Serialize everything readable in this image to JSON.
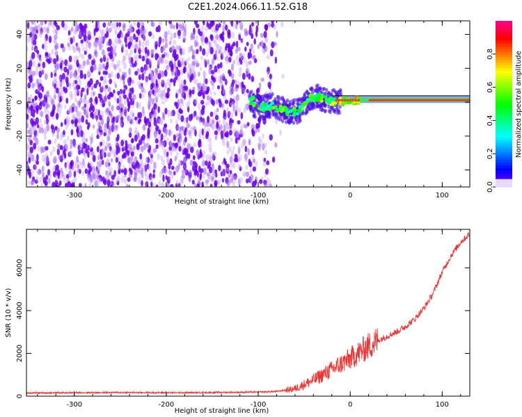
{
  "title": "C2E1.2024.066.11.52.G18",
  "chart_data": [
    {
      "type": "heatmap",
      "xlabel": "Height of straight line (km)",
      "ylabel": "Frequency (Hz)",
      "xlim": [
        -352,
        130
      ],
      "ylim": [
        -50,
        48
      ],
      "xticks": [
        "-300",
        "-200",
        "-100",
        "0",
        "100"
      ],
      "yticks": [
        "-40",
        "-20",
        "0",
        "20",
        "40"
      ],
      "colorbar": {
        "label": "Normalized spectral amplitude",
        "range": [
          0,
          1
        ],
        "ticks": [
          "0.0",
          "0.2",
          "0.4",
          "0.6",
          "0.8"
        ]
      },
      "noise_region": {
        "x_from": -352,
        "x_to": -75
      },
      "signal_track": [
        {
          "x": -105,
          "y": -2
        },
        {
          "x": -95,
          "y": -3
        },
        {
          "x": -85,
          "y": -2
        },
        {
          "x": -75,
          "y": -4
        },
        {
          "x": -65,
          "y": -6
        },
        {
          "x": -55,
          "y": -5
        },
        {
          "x": -45,
          "y": 2
        },
        {
          "x": -35,
          "y": 3
        },
        {
          "x": -25,
          "y": 1
        },
        {
          "x": -15,
          "y": 0
        },
        {
          "x": 0,
          "y": 1
        },
        {
          "x": 30,
          "y": 1
        },
        {
          "x": 130,
          "y": 1
        }
      ]
    },
    {
      "type": "line",
      "xlabel": "Height of straight line (km)",
      "ylabel": "SNR (10 * v/v)",
      "xlim": [
        -352,
        130
      ],
      "ylim": [
        0,
        7800
      ],
      "xticks": [
        "-300",
        "-200",
        "-100",
        "0",
        "100"
      ],
      "yticks": [
        "0",
        "2000",
        "4000",
        "6000"
      ],
      "color": "#ee3333",
      "series": [
        {
          "x": [
            -352,
            -300,
            -250,
            -200,
            -150,
            -100,
            -80,
            -60,
            -50,
            -40,
            -30,
            -20,
            -10,
            0,
            10,
            20,
            30,
            40,
            50,
            60,
            70,
            80,
            90,
            100,
            110,
            120,
            130
          ],
          "values": [
            150,
            160,
            170,
            160,
            170,
            190,
            220,
            350,
            550,
            750,
            1000,
            1250,
            1500,
            1750,
            2050,
            2350,
            2600,
            2800,
            3000,
            3250,
            3600,
            4100,
            4800,
            5800,
            6600,
            7200,
            7600
          ]
        }
      ]
    }
  ]
}
